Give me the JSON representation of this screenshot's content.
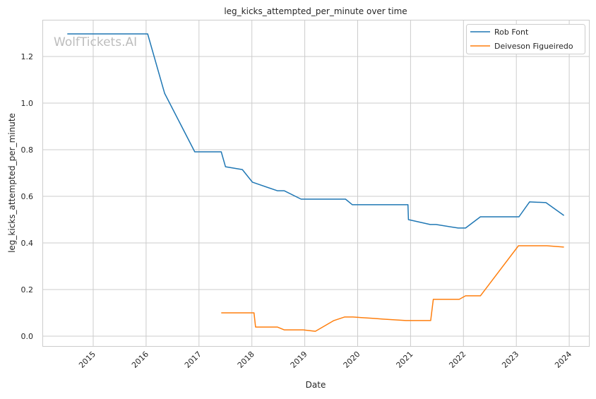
{
  "watermark": "WolfTickets.AI",
  "chart_data": {
    "type": "line",
    "title": "leg_kicks_attempted_per_minute over time",
    "xlabel": "Date",
    "ylabel": "leg_kicks_attempted_per_minute",
    "xlim": [
      2014.05,
      2024.35
    ],
    "ylim": [
      -0.04,
      1.36
    ],
    "x_ticks": [
      2015,
      2016,
      2017,
      2018,
      2019,
      2020,
      2021,
      2022,
      2023,
      2024
    ],
    "x_tick_labels": [
      "2015",
      "2016",
      "2017",
      "2018",
      "2019",
      "2020",
      "2021",
      "2022",
      "2023",
      "2024"
    ],
    "y_ticks": [
      0.0,
      0.2,
      0.4,
      0.6,
      0.8,
      1.0,
      1.2
    ],
    "y_tick_labels": [
      "0.0",
      "0.2",
      "0.4",
      "0.6",
      "0.8",
      "1.0",
      "1.2"
    ],
    "grid": true,
    "legend_position": "top-right",
    "series": [
      {
        "name": "Rob Font",
        "color": "#1f77b4",
        "x": [
          2014.51,
          2016.03,
          2016.35,
          2016.92,
          2017.42,
          2017.5,
          2017.82,
          2018.01,
          2018.48,
          2018.61,
          2018.93,
          2019.77,
          2019.9,
          2020.95,
          2020.96,
          2021.37,
          2021.48,
          2021.9,
          2022.04,
          2022.32,
          2023.05,
          2023.25,
          2023.56,
          2023.9
        ],
        "y": [
          1.297,
          1.297,
          1.042,
          0.791,
          0.791,
          0.727,
          0.715,
          0.661,
          0.624,
          0.624,
          0.588,
          0.588,
          0.564,
          0.564,
          0.5,
          0.479,
          0.479,
          0.464,
          0.464,
          0.512,
          0.512,
          0.576,
          0.573,
          0.518
        ]
      },
      {
        "name": "Deiveson Figueiredo",
        "color": "#ff7f0e",
        "x": [
          2017.42,
          2018.04,
          2018.07,
          2018.48,
          2018.61,
          2018.97,
          2019.2,
          2019.55,
          2019.75,
          2019.91,
          2020.31,
          2020.48,
          2020.91,
          2021.38,
          2021.43,
          2021.92,
          2022.04,
          2022.32,
          2023.04,
          2023.58,
          2023.9
        ],
        "y": [
          0.1,
          0.1,
          0.039,
          0.039,
          0.027,
          0.027,
          0.021,
          0.067,
          0.082,
          0.082,
          0.076,
          0.073,
          0.067,
          0.067,
          0.158,
          0.158,
          0.173,
          0.173,
          0.388,
          0.388,
          0.382
        ]
      }
    ]
  }
}
